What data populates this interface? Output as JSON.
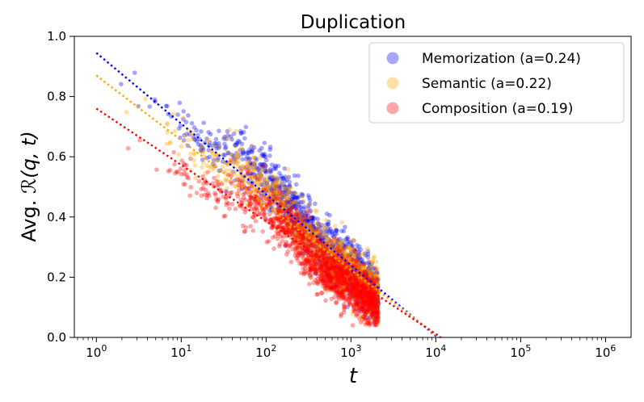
{
  "chart_data": {
    "type": "scatter",
    "title": "Duplication",
    "xlabel": "t",
    "ylabel_prefix": "Avg. ",
    "ylabel_math": "ℛ(q, t)",
    "xscale": "log",
    "xlim": [
      0.55,
      2000000
    ],
    "ylim": [
      0.0,
      1.0
    ],
    "xtick_exponents": [
      0,
      1,
      2,
      3,
      4,
      5,
      6
    ],
    "xtick_labels": [
      "10",
      "10",
      "10",
      "10",
      "10",
      "10",
      "10"
    ],
    "xtick_sup": [
      "0",
      "1",
      "2",
      "3",
      "4",
      "5",
      "6"
    ],
    "yticks": [
      0.0,
      0.2,
      0.4,
      0.6,
      0.8,
      1.0
    ],
    "ytick_labels": [
      "0.0",
      "0.2",
      "0.4",
      "0.6",
      "0.8",
      "1.0"
    ],
    "legend_position": "top-right",
    "series": [
      {
        "name": "Memorization (a=0.24)",
        "color": "#0000ff",
        "fit_intercept": 0.945,
        "fit_slope": -0.24,
        "fit_x_end": 10500
      },
      {
        "name": "Semantic (a=0.22)",
        "color": "#ffa500",
        "fit_intercept": 0.87,
        "fit_slope": -0.22,
        "fit_x_end": 11000
      },
      {
        "name": "Composition (a=0.19)",
        "color": "#ff0000",
        "fit_intercept": 0.76,
        "fit_slope": -0.19,
        "fit_x_end": 11500
      }
    ],
    "scatter_range": {
      "x_min": 1,
      "x_max": 2100,
      "point_count_per_series": 1400
    }
  }
}
